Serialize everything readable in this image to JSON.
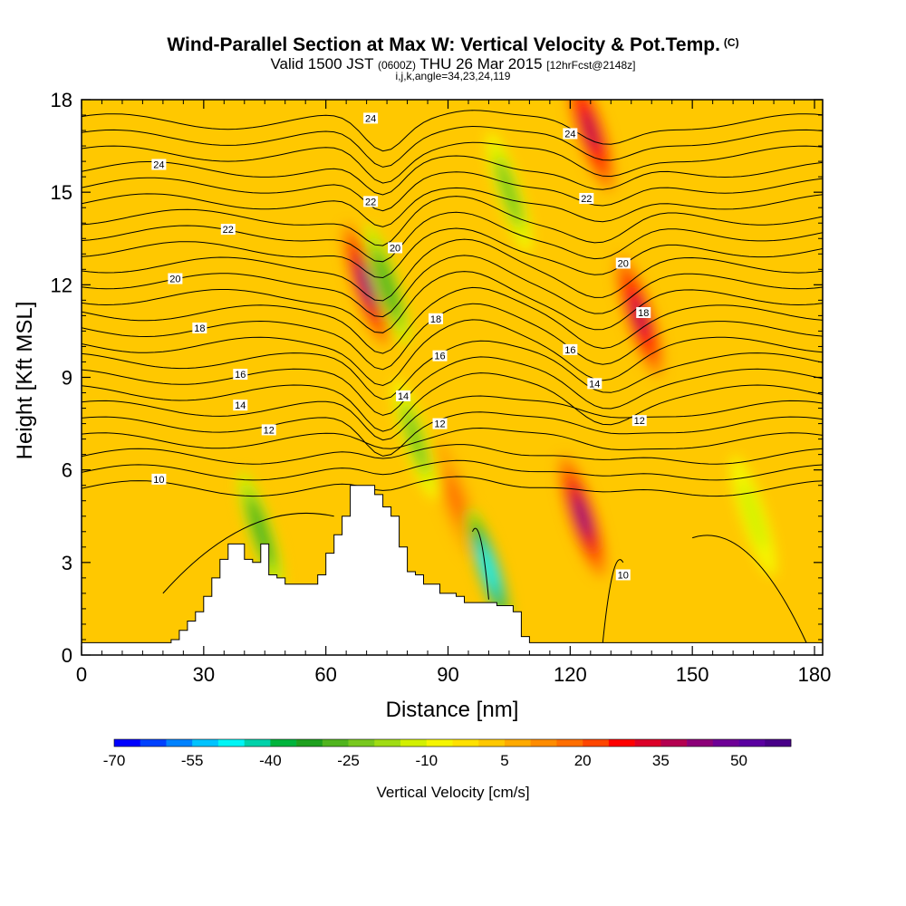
{
  "title": "Wind-Parallel Section at Max W: Vertical Velocity & Pot.Temp.",
  "title_unit": "(C)",
  "subtitle_valid": "Valid 1500 JST",
  "subtitle_z": "(0600Z)",
  "subtitle_date": "THU 26 Mar 2015",
  "subtitle_fcst": "[12hrFcst@2148z]",
  "subtitle_indices": "i,j,k,angle=34,23,24,119",
  "chart_data": {
    "type": "heatmap",
    "xlabel": "Distance [nm]",
    "ylabel": "Height [Kft MSL]",
    "xlim": [
      0,
      182
    ],
    "ylim": [
      0,
      18
    ],
    "x_ticks": [
      0,
      30,
      60,
      90,
      120,
      150,
      180
    ],
    "y_ticks": [
      0,
      3,
      6,
      9,
      12,
      15,
      18
    ],
    "colorbar": {
      "title": "Vertical Velocity [cm/s]",
      "range": [
        -70,
        60
      ],
      "step": 5,
      "tick_values": [
        -70,
        -55,
        -40,
        -25,
        -10,
        5,
        20,
        35,
        50
      ],
      "tick_labels": [
        "-70",
        "-55",
        "-40",
        "-25",
        "-10",
        "5",
        "20",
        "35",
        "50"
      ],
      "colors": [
        "#0000ff",
        "#0041ff",
        "#0082ff",
        "#00c3ff",
        "#00f5f5",
        "#00d2aa",
        "#00b43c",
        "#1ea01e",
        "#50b41e",
        "#78c81e",
        "#a0dc14",
        "#d2f000",
        "#f5f500",
        "#ffe100",
        "#ffc800",
        "#ffaa00",
        "#ff8c00",
        "#ff6e00",
        "#ff4600",
        "#ff0000",
        "#dc0028",
        "#b40050",
        "#8c0078",
        "#6e0096",
        "#5a00a0",
        "#480088"
      ]
    },
    "vertical_velocity_features": [
      {
        "kind": "updraft",
        "x": 70,
        "y": 12,
        "peak_w": 40
      },
      {
        "kind": "updraft",
        "x": 125,
        "y": 17,
        "peak_w": 35
      },
      {
        "kind": "updraft",
        "x": 137,
        "y": 11,
        "peak_w": 35
      },
      {
        "kind": "updraft",
        "x": 123,
        "y": 4.5,
        "peak_w": 40
      },
      {
        "kind": "updraft",
        "x": 92,
        "y": 5,
        "peak_w": 15
      },
      {
        "kind": "downdraft",
        "x": 100,
        "y": 2.8,
        "peak_w": -50
      },
      {
        "kind": "downdraft",
        "x": 75,
        "y": 12,
        "peak_w": -30
      },
      {
        "kind": "downdraft",
        "x": 105,
        "y": 15,
        "peak_w": -25
      },
      {
        "kind": "downdraft",
        "x": 82,
        "y": 7,
        "peak_w": -25
      },
      {
        "kind": "downdraft",
        "x": 44,
        "y": 4,
        "peak_w": -30
      },
      {
        "kind": "downdraft",
        "x": 165,
        "y": 4.5,
        "peak_w": -15
      }
    ],
    "potential_temperature_contours": [
      10,
      12,
      14,
      16,
      18,
      20,
      22,
      24
    ],
    "contour_labels": [
      {
        "text": "24",
        "x": 19,
        "y": 15.9
      },
      {
        "text": "22",
        "x": 36,
        "y": 13.8
      },
      {
        "text": "20",
        "x": 23,
        "y": 12.2
      },
      {
        "text": "18",
        "x": 29,
        "y": 10.6
      },
      {
        "text": "16",
        "x": 39,
        "y": 9.1
      },
      {
        "text": "14",
        "x": 39,
        "y": 8.1
      },
      {
        "text": "12",
        "x": 46,
        "y": 7.3
      },
      {
        "text": "10",
        "x": 19,
        "y": 5.7
      },
      {
        "text": "24",
        "x": 71,
        "y": 17.4
      },
      {
        "text": "22",
        "x": 71,
        "y": 14.7
      },
      {
        "text": "20",
        "x": 77,
        "y": 13.2
      },
      {
        "text": "18",
        "x": 87,
        "y": 10.9
      },
      {
        "text": "16",
        "x": 88,
        "y": 9.7
      },
      {
        "text": "14",
        "x": 79,
        "y": 8.4
      },
      {
        "text": "12",
        "x": 88,
        "y": 7.5
      },
      {
        "text": "24",
        "x": 120,
        "y": 16.9
      },
      {
        "text": "22",
        "x": 124,
        "y": 14.8
      },
      {
        "text": "20",
        "x": 133,
        "y": 12.7
      },
      {
        "text": "18",
        "x": 138,
        "y": 11.1
      },
      {
        "text": "16",
        "x": 120,
        "y": 9.9
      },
      {
        "text": "14",
        "x": 126,
        "y": 8.8
      },
      {
        "text": "12",
        "x": 137,
        "y": 7.6
      },
      {
        "text": "10",
        "x": 133,
        "y": 2.6
      }
    ],
    "terrain_profile": [
      [
        0,
        0.4
      ],
      [
        22,
        0.4
      ],
      [
        22,
        0.5
      ],
      [
        24,
        0.5
      ],
      [
        24,
        0.8
      ],
      [
        26,
        0.8
      ],
      [
        26,
        1.1
      ],
      [
        28,
        1.1
      ],
      [
        28,
        1.4
      ],
      [
        30,
        1.4
      ],
      [
        30,
        1.9
      ],
      [
        32,
        1.9
      ],
      [
        32,
        2.5
      ],
      [
        34,
        2.5
      ],
      [
        34,
        3.1
      ],
      [
        36,
        3.1
      ],
      [
        36,
        3.6
      ],
      [
        40,
        3.6
      ],
      [
        40,
        3.1
      ],
      [
        42,
        3.1
      ],
      [
        42,
        3.0
      ],
      [
        44,
        3.0
      ],
      [
        44,
        3.6
      ],
      [
        46,
        3.6
      ],
      [
        46,
        2.6
      ],
      [
        48,
        2.6
      ],
      [
        48,
        2.5
      ],
      [
        50,
        2.5
      ],
      [
        50,
        2.3
      ],
      [
        58,
        2.3
      ],
      [
        58,
        2.6
      ],
      [
        60,
        2.6
      ],
      [
        60,
        3.3
      ],
      [
        62,
        3.3
      ],
      [
        62,
        3.9
      ],
      [
        64,
        3.9
      ],
      [
        64,
        4.5
      ],
      [
        66,
        4.5
      ],
      [
        66,
        5.5
      ],
      [
        72,
        5.5
      ],
      [
        72,
        5.2
      ],
      [
        74,
        5.2
      ],
      [
        74,
        4.8
      ],
      [
        76,
        4.8
      ],
      [
        76,
        4.5
      ],
      [
        78,
        4.5
      ],
      [
        78,
        3.5
      ],
      [
        80,
        3.5
      ],
      [
        80,
        2.7
      ],
      [
        82,
        2.7
      ],
      [
        82,
        2.6
      ],
      [
        84,
        2.6
      ],
      [
        84,
        2.3
      ],
      [
        88,
        2.3
      ],
      [
        88,
        2.0
      ],
      [
        92,
        2.0
      ],
      [
        92,
        1.9
      ],
      [
        94,
        1.9
      ],
      [
        94,
        1.7
      ],
      [
        102,
        1.7
      ],
      [
        102,
        1.6
      ],
      [
        106,
        1.6
      ],
      [
        106,
        1.4
      ],
      [
        108,
        1.4
      ],
      [
        108,
        0.6
      ],
      [
        110,
        0.6
      ],
      [
        110,
        0.4
      ],
      [
        182,
        0.4
      ]
    ]
  }
}
